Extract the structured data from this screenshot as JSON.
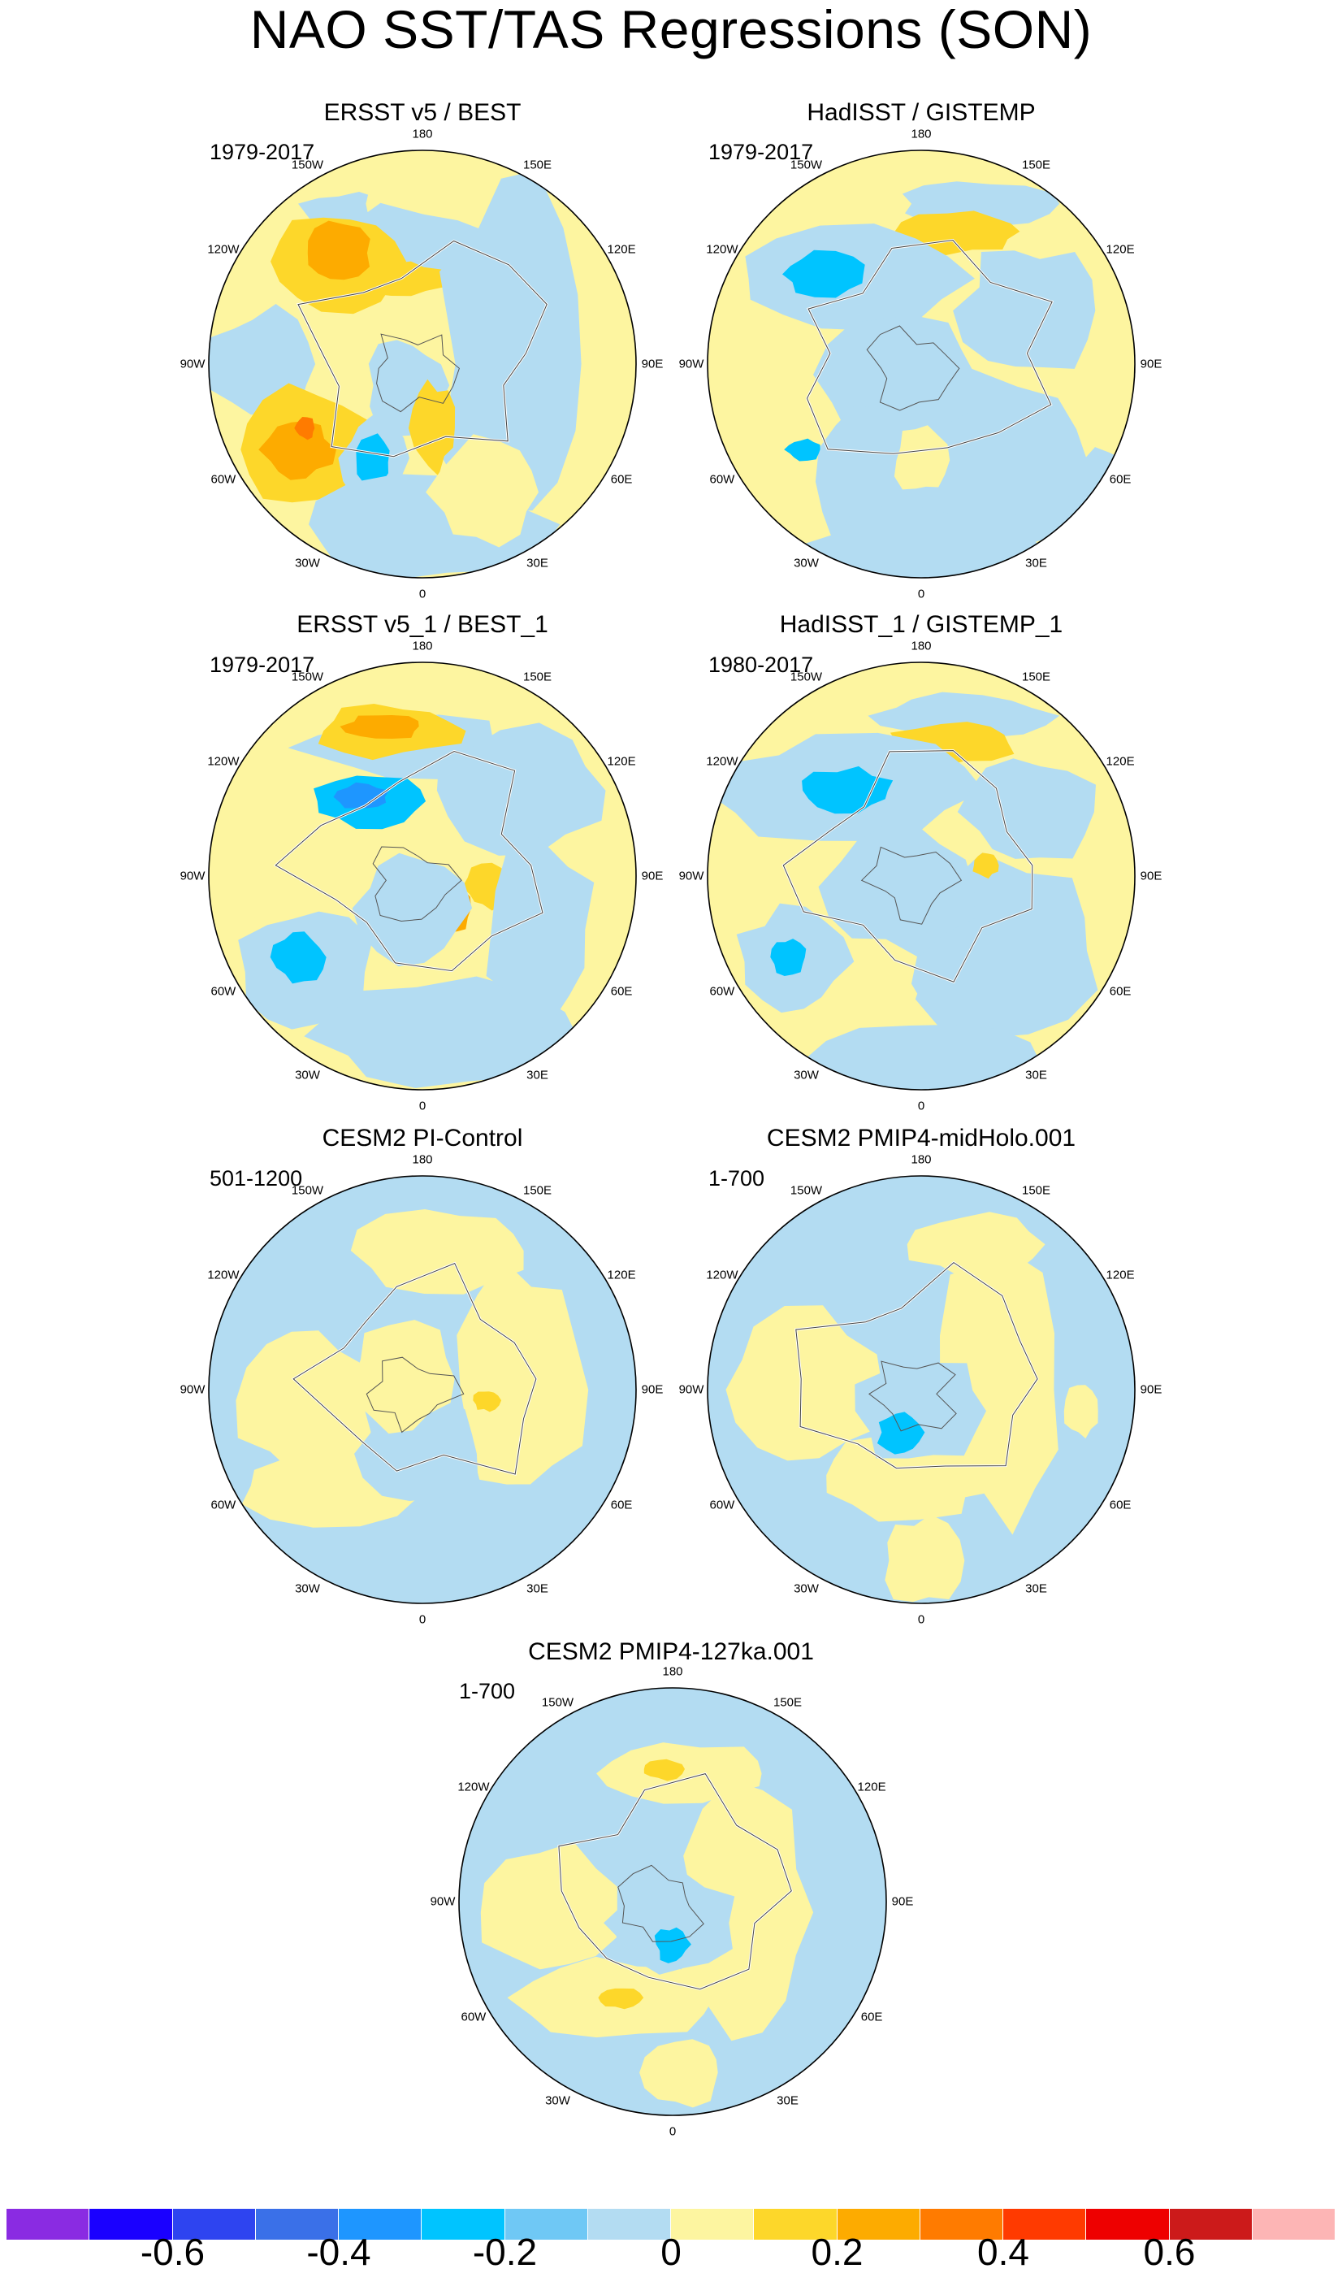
{
  "title": "NAO SST/TAS Regressions (SON)",
  "panels": [
    {
      "title": "ERSST v5 / BEST",
      "period": "1979-2017",
      "pattern": "ersst"
    },
    {
      "title": "HadISST / GISTEMP",
      "period": "1979-2017",
      "pattern": "hadisst"
    },
    {
      "title": "ERSST v5_1 / BEST_1",
      "period": "1979-2017",
      "pattern": "ersst1"
    },
    {
      "title": "HadISST_1 / GISTEMP_1",
      "period": "1980-2017",
      "pattern": "hadisst1"
    },
    {
      "title": "CESM2 PI-Control",
      "period": "501-1200",
      "pattern": "pic"
    },
    {
      "title": "CESM2 PMIP4-midHolo.001",
      "period": "1-700",
      "pattern": "mid"
    },
    {
      "title": "CESM2 PMIP4-127ka.001",
      "period": "1-700",
      "pattern": "lig"
    }
  ],
  "longitude_labels": [
    "180",
    "150E",
    "120E",
    "90E",
    "60E",
    "30E",
    "0",
    "30W",
    "60W",
    "90W",
    "120W",
    "150W"
  ],
  "colorbar": {
    "colors": [
      "#8a2be2",
      "#1a00ff",
      "#2e44f0",
      "#3a70e8",
      "#1e96ff",
      "#00c4ff",
      "#6fc8f5",
      "#b3dcf2",
      "#fdf5a0",
      "#fdd72a",
      "#fdab00",
      "#ff7b00",
      "#ff3a00",
      "#ee0000",
      "#cc1a1a",
      "#fdb5b5"
    ],
    "tick_labels": [
      "-0.6",
      "-0.4",
      "-0.2",
      "0",
      "0.2",
      "0.4",
      "0.6"
    ],
    "tick_values": [
      -0.6,
      -0.4,
      -0.2,
      0,
      0.2,
      0.4,
      0.6
    ]
  }
}
